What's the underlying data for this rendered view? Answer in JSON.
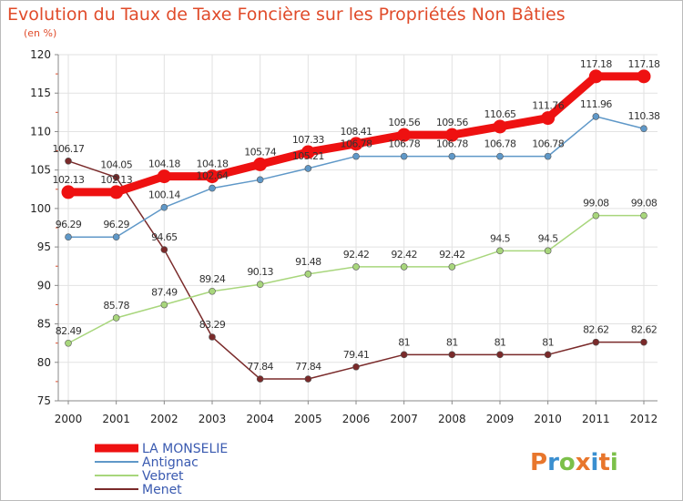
{
  "chart_data": {
    "type": "line",
    "title": "Evolution du Taux de Taxe Foncière sur les Propriétés Non Bâties",
    "subtitle": "(en %)",
    "x": [
      "2000",
      "2001",
      "2002",
      "2003",
      "2004",
      "2005",
      "2006",
      "2007",
      "2008",
      "2009",
      "2010",
      "2011",
      "2012"
    ],
    "ylim": [
      75,
      120
    ],
    "yticks": [
      75,
      80,
      85,
      90,
      95,
      100,
      105,
      110,
      115,
      120
    ],
    "grid": true,
    "legend_position": "bottom-left",
    "series": [
      {
        "name": "LA MONSELIE",
        "color": "#ee1111",
        "values": [
          102.13,
          102.13,
          104.18,
          104.18,
          105.74,
          107.33,
          108.41,
          109.56,
          109.56,
          110.65,
          111.76,
          117.18,
          117.18
        ],
        "labels": [
          "102.13",
          "102.13",
          "104.18",
          "104.18",
          "105.74",
          "107.33",
          "108.41",
          "109.56",
          "109.56",
          "110.65",
          "111.76",
          "117.18",
          "117.18"
        ]
      },
      {
        "name": "Antignac",
        "color": "#5f98c8",
        "values": [
          96.29,
          96.29,
          100.14,
          102.64,
          103.74,
          105.21,
          106.78,
          106.78,
          106.78,
          106.78,
          106.78,
          111.96,
          110.38
        ],
        "labels": [
          "96.29",
          "96.29",
          "100.14",
          "102.64",
          "",
          "105.21",
          "106.78",
          "106.78",
          "106.78",
          "106.78",
          "106.78",
          "111.96",
          "110.38"
        ]
      },
      {
        "name": "Vebret",
        "color": "#a8d67c",
        "values": [
          82.49,
          85.78,
          87.49,
          89.24,
          90.13,
          91.48,
          92.42,
          92.42,
          92.42,
          94.5,
          94.5,
          99.08,
          99.08
        ],
        "labels": [
          "82.49",
          "85.78",
          "87.49",
          "89.24",
          "90.13",
          "91.48",
          "92.42",
          "92.42",
          "92.42",
          "94.5",
          "94.5",
          "99.08",
          "99.08"
        ]
      },
      {
        "name": "Menet",
        "color": "#7a2a2a",
        "values": [
          106.17,
          104.05,
          94.65,
          83.29,
          77.84,
          77.84,
          79.41,
          81,
          81,
          81,
          81,
          82.62,
          82.62
        ],
        "labels": [
          "106.17",
          "104.05",
          "94.65",
          "83.29",
          "77.84",
          "77.84",
          "79.41",
          "81",
          "81",
          "81",
          "81",
          "82.62",
          "82.62"
        ]
      }
    ]
  },
  "logo": {
    "text": "Proxiti",
    "colors": [
      "#e8762c",
      "#3a8fd0",
      "#7cc04a",
      "#e8762c",
      "#3a8fd0",
      "#e8762c",
      "#7cc04a"
    ]
  }
}
